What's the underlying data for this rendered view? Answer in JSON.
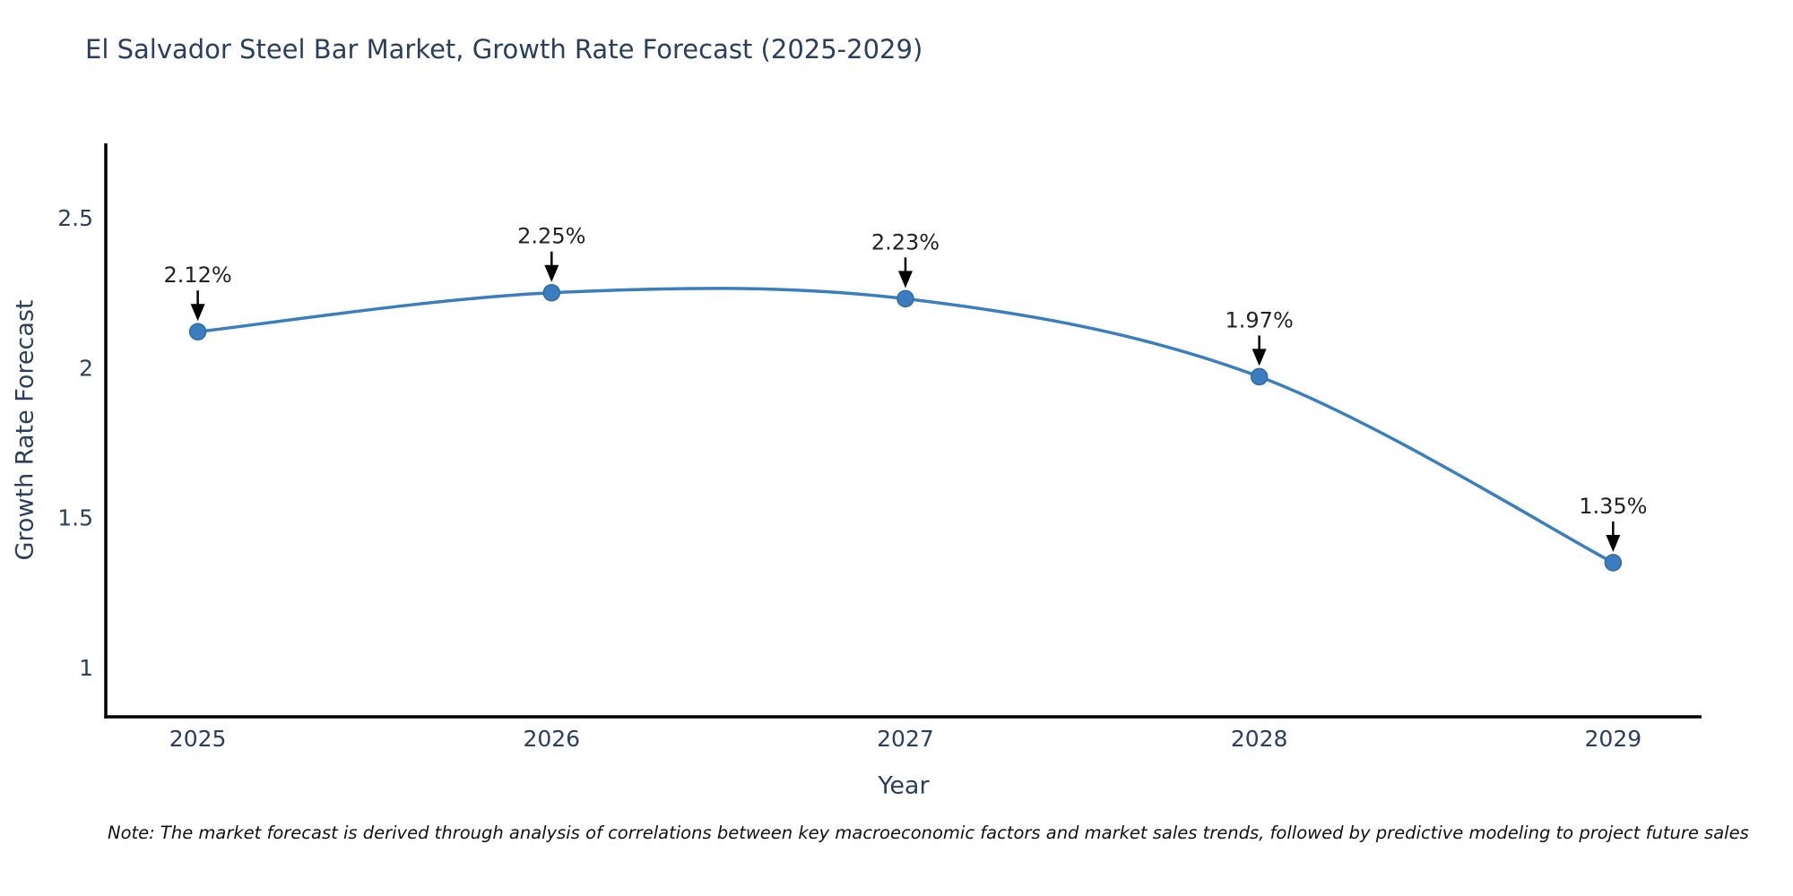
{
  "title": "El Salvador Steel Bar Market, Growth Rate Forecast (2025-2029)",
  "note": "Note: The market forecast is derived through analysis of correlations between key macroeconomic factors and market sales trends, followed by predictive modeling to project future sales",
  "chart_data": {
    "type": "line",
    "title": "El Salvador Steel Bar Market, Growth Rate Forecast (2025-2029)",
    "xlabel": "Year",
    "ylabel": "Growth Rate Forecast",
    "x": [
      2025,
      2026,
      2027,
      2028,
      2029
    ],
    "y": [
      2.12,
      2.25,
      2.23,
      1.97,
      1.35
    ],
    "point_labels": [
      "2.12%",
      "2.25%",
      "2.23%",
      "1.97%",
      "1.35%"
    ],
    "xticks": [
      2025,
      2026,
      2027,
      2028,
      2029
    ],
    "yticks": [
      1,
      1.5,
      2,
      2.5
    ],
    "xlim": [
      2024.74,
      2029.25
    ],
    "ylim": [
      0.836,
      2.748
    ],
    "line_shape": "spline",
    "grid": false,
    "legend": "none",
    "colors": {
      "line": "#3a7ebf",
      "marker": "#3a7ebf",
      "marker_edge": "#2f6ba3",
      "axis_line": "#000000",
      "tick_text": "#2a3f5f",
      "annotation_text": "#222222",
      "arrow": "#000000",
      "background": "#ffffff"
    }
  }
}
